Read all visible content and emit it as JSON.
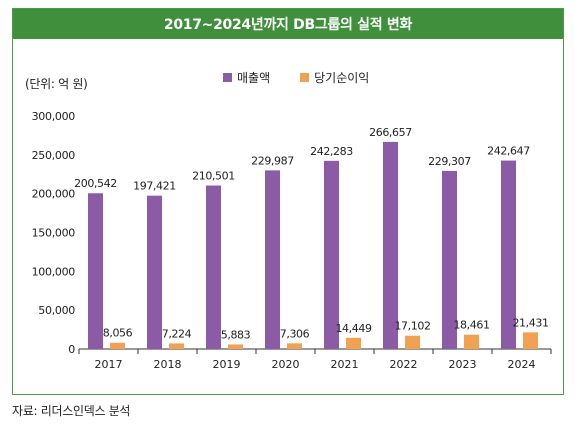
{
  "title": "2017~2024년까지 DB그룹의 실적 변화",
  "unit_label": "(단위: 억 원)",
  "source": "자료: 리더스인덱스 분석",
  "colors": {
    "revenue": "#8b5ba5",
    "profit": "#f0a152",
    "title_bg": "#3f8f3c",
    "border": "#4f9a45"
  },
  "chart_data": {
    "type": "bar",
    "categories": [
      "2017",
      "2018",
      "2019",
      "2020",
      "2021",
      "2022",
      "2023",
      "2024"
    ],
    "series": [
      {
        "name": "매출액",
        "values": [
          200542,
          197421,
          210501,
          229987,
          242283,
          266657,
          229307,
          242647
        ],
        "labels": [
          "200,542",
          "197,421",
          "210,501",
          "229,987",
          "242,283",
          "266,657",
          "229,307",
          "242,647"
        ]
      },
      {
        "name": "당기순이익",
        "values": [
          8056,
          7224,
          5883,
          7306,
          14449,
          17102,
          18461,
          21431
        ],
        "labels": [
          "8,056",
          "7,224",
          "5,883",
          "7,306",
          "14,449",
          "17,102",
          "18,461",
          "21,431"
        ]
      }
    ],
    "yticks": [
      0,
      50000,
      100000,
      150000,
      200000,
      250000,
      300000
    ],
    "ytick_labels": [
      "0",
      "50,000",
      "100,000",
      "150,000",
      "200,000",
      "250,000",
      "300,000"
    ],
    "ylim": [
      0,
      300000
    ],
    "grid": false,
    "legend_position": "top-center"
  }
}
